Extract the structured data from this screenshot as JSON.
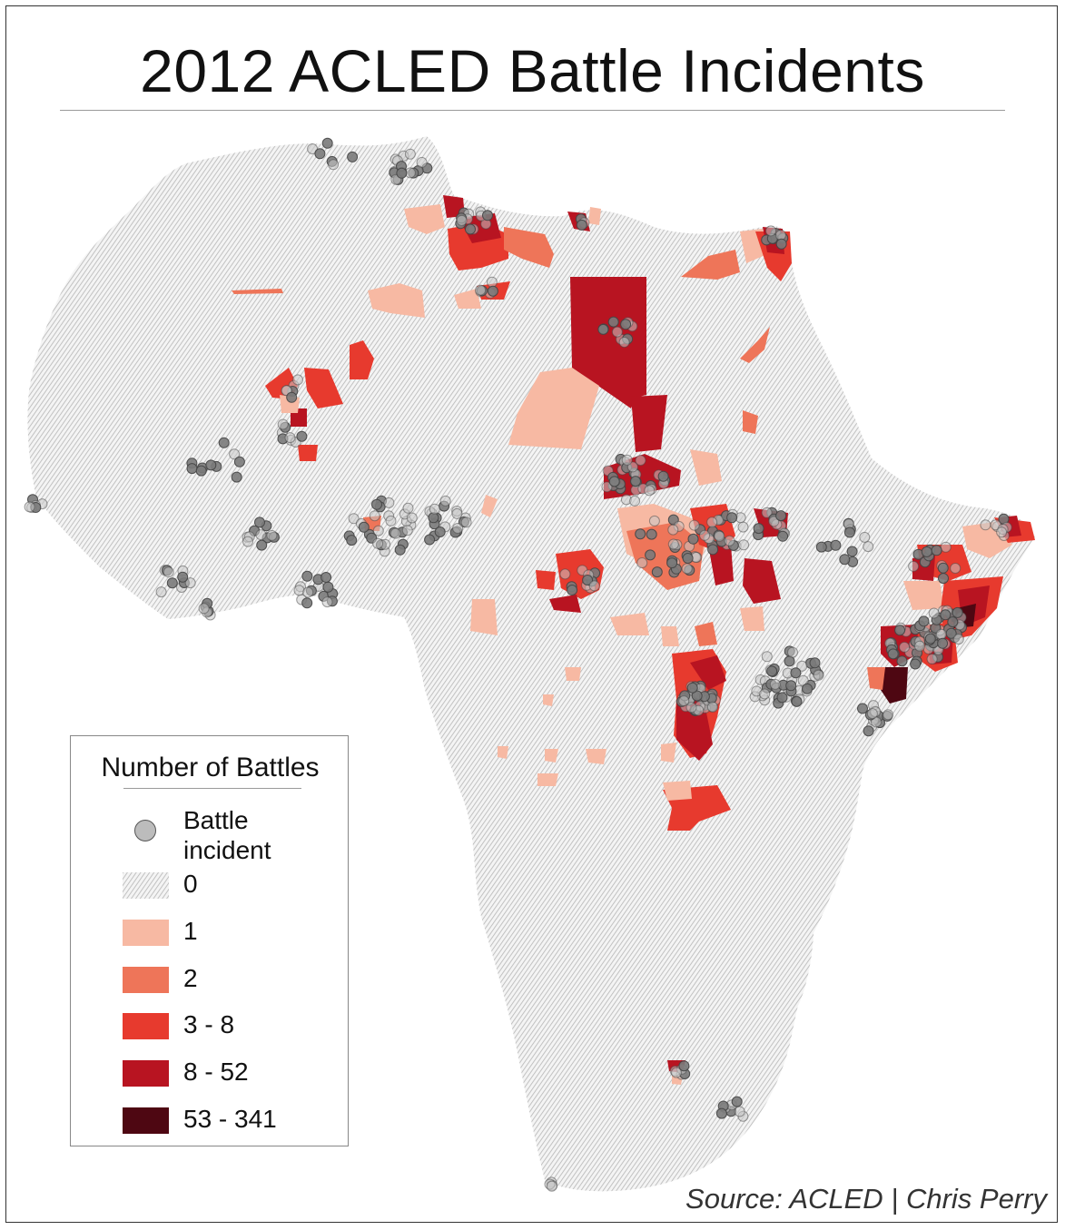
{
  "title": "2012 ACLED Battle Incidents",
  "source": "Source: ACLED | Chris Perry",
  "legend": {
    "title": "Number of Battles",
    "incident_label_line1": "Battle",
    "incident_label_line2": "incident",
    "classes": [
      {
        "label": "0",
        "color": "#e8e8e8",
        "pattern": "hatched"
      },
      {
        "label": "1",
        "color": "#f7b9a3"
      },
      {
        "label": "2",
        "color": "#ee7559"
      },
      {
        "label": "3 - 8",
        "color": "#e73a2e"
      },
      {
        "label": "8 - 52",
        "color": "#b81421"
      },
      {
        "label": "53 - 341",
        "color": "#4e0712"
      }
    ]
  },
  "colors": {
    "land_hatch": "#bdbdbd",
    "incident_fill": "#8a8a8a",
    "incident_stroke": "#444444"
  }
}
